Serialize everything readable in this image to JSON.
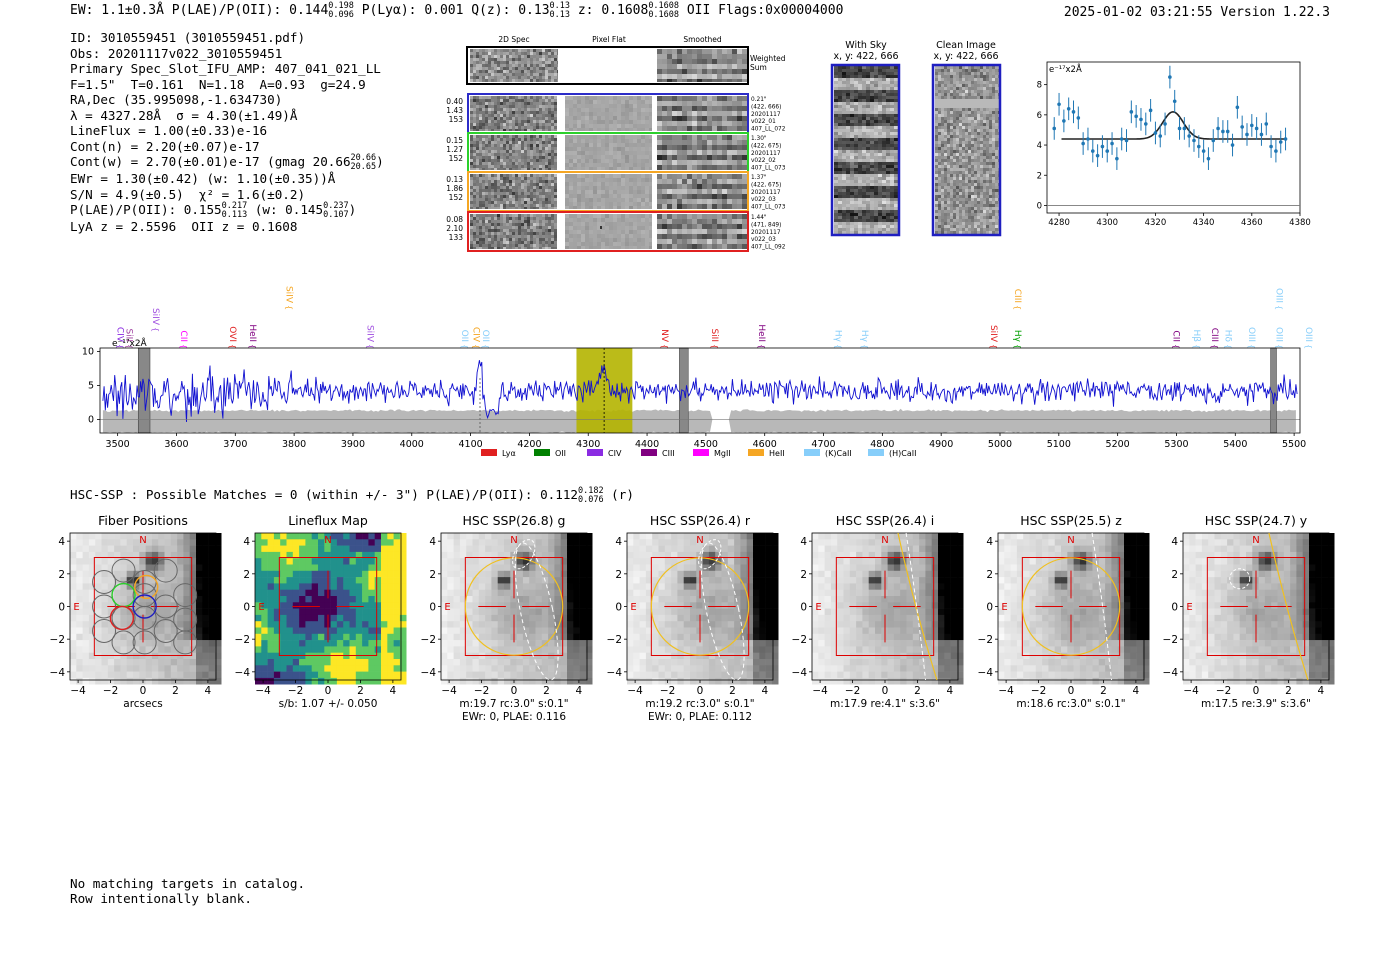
{
  "header": {
    "left": [
      {
        "t": "EW: 1.1±0.3Å   P(LAE)/P(OII): 0.144"
      },
      {
        "sup": "0.198",
        "sub": "0.096"
      },
      {
        "t": "  P(Lyα): 0.001   Q(z): 0.13"
      },
      {
        "sup": "0.13",
        "sub": "0.13"
      },
      {
        "t": "  z: 0.1608"
      },
      {
        "sup": "0.1608",
        "sub": "0.1608"
      },
      {
        "t": " OII   Flags:0x00004000"
      }
    ],
    "right": "2025-01-02 03:21:55  Version 1.22.3"
  },
  "info": {
    "lines": [
      "ID: 3010559451 (3010559451.pdf)",
      "Obs: 20201117v022_3010559451",
      "Primary Spec_Slot_IFU_AMP: 407_041_021_LL",
      "F=1.5\"  T=0.161  N=1.18  A=0.93  g=24.9",
      "RA,Dec (35.995098,-1.634730)",
      "λ = 4327.28Å  σ = 4.30(±1.49)Å",
      "LineFlux = 1.00(±0.33)e-16",
      "Cont(n) = 2.20(±0.07)e-17",
      "Cont(w) = 2.70(±0.01)e-17 (gmag 20.66",
      "EWr = 1.30(±0.42) (w: 1.10(±0.35))Å",
      "S/N = 4.9(±0.5)  χ² = 1.6(±0.2)",
      "P(LAE)/P(OII): 0.155",
      "LyA z = 2.5596  OII z = 0.1608"
    ],
    "cont_w_frac": {
      "sup": "20.66",
      "sub": "20.65",
      "tail": ")"
    },
    "plae_frac": {
      "sup": "0.217",
      "sub": "0.113",
      "mid": " (w: 0.145",
      "sup2": "0.237",
      "sub2": "0.107",
      "tail": ")"
    }
  },
  "cutouts": {
    "col_titles": [
      "2D Spec",
      "Pixel Flat",
      "Smoothed"
    ],
    "weighted_label": "Weighted Sum",
    "rows": [
      {
        "stats": [
          "0.40",
          "1.43",
          "153"
        ],
        "color": "#2c2cc8",
        "note": [
          "0.21\"",
          "(422, 666)",
          "20201117",
          "v022_01",
          "407_LL_072"
        ]
      },
      {
        "stats": [
          "0.15",
          "1.27",
          "152"
        ],
        "color": "#2bd02b",
        "note": [
          "1.30\"",
          "(422, 675)",
          "20201117",
          "v022_02",
          "407_LL_073"
        ]
      },
      {
        "stats": [
          "0.13",
          "1.86",
          "152"
        ],
        "color": "#f5a623",
        "note": [
          "1.37\"",
          "(422, 675)",
          "20201117",
          "v022_03",
          "407_LL_073"
        ]
      },
      {
        "stats": [
          "0.08",
          "2.10",
          "133"
        ],
        "color": "#e02020",
        "note": [
          "1.44\"",
          "(471, 849)",
          "20201117",
          "v022_03",
          "407_LL_092"
        ]
      }
    ]
  },
  "sky": {
    "with_sky_title": "With Sky",
    "with_sky_sub": "x, y: 422, 666",
    "clean_title": "Clean Image",
    "clean_sub": "x, y: 422, 666"
  },
  "line_fit": {
    "units": "e⁻¹⁷x2Å",
    "xticks": [
      "4280",
      "4300",
      "4320",
      "4340",
      "4360",
      "4380"
    ],
    "yticks": [
      "0",
      "2",
      "4",
      "6",
      "8"
    ],
    "xlim": [
      4275,
      4380
    ],
    "ylim": [
      -0.5,
      9.5
    ],
    "continuum": 4.4,
    "peak": 6.2,
    "center": 4327.3,
    "sigma": 4.3,
    "points_x": [
      4278,
      4280,
      4282,
      4284,
      4286,
      4288,
      4290,
      4292,
      4294,
      4296,
      4298,
      4300,
      4302,
      4304,
      4306,
      4308,
      4310,
      4312,
      4314,
      4316,
      4318,
      4320,
      4322,
      4324,
      4326,
      4328,
      4330,
      4332,
      4334,
      4336,
      4338,
      4340,
      4342,
      4344,
      4346,
      4348,
      4350,
      4352,
      4354,
      4356,
      4358,
      4360,
      4362,
      4364,
      4366,
      4368,
      4370,
      4372,
      4374
    ],
    "points_y": [
      5.1,
      6.7,
      5.6,
      6.4,
      6.2,
      5.8,
      4.1,
      4.4,
      3.6,
      3.3,
      3.9,
      3.6,
      4.1,
      3.1,
      4.4,
      4.3,
      6.2,
      5.9,
      5.7,
      5.4,
      6.3,
      4.8,
      4.6,
      5.4,
      8.5,
      6.9,
      5.1,
      5.1,
      4.6,
      4.3,
      3.9,
      3.6,
      3.1,
      4.3,
      5.1,
      4.9,
      4.9,
      4.0,
      6.5,
      5.2,
      4.7,
      5.3,
      5.1,
      4.7,
      5.4,
      3.9,
      3.6,
      4.2,
      4.4
    ],
    "errors": 0.75
  },
  "full_spec": {
    "units": "e⁻¹⁷x2Å",
    "xlim": [
      3470,
      5510
    ],
    "ylim": [
      -2,
      10.5
    ],
    "xticks": [
      "3500",
      "3600",
      "3700",
      "3800",
      "3900",
      "4000",
      "4100",
      "4200",
      "4300",
      "4400",
      "4500",
      "4600",
      "4700",
      "4800",
      "4900",
      "5000",
      "5100",
      "5200",
      "5300",
      "5400",
      "5500"
    ],
    "yticks": [
      "0",
      "5",
      "10"
    ],
    "highlight": [
      4280,
      4375
    ],
    "center_line": 4327,
    "dashed_line": 4116,
    "gray_bands": [
      [
        3535,
        3555
      ],
      [
        4455,
        4470
      ],
      [
        5460,
        5470
      ]
    ],
    "lines": [
      {
        "label": "CIV",
        "x": 3495,
        "color": "#8a2be2",
        "row": "low"
      },
      {
        "label": "SiII",
        "x": 3510,
        "color": "#a040a0",
        "row": "low"
      },
      {
        "label": "CII",
        "x": 3603,
        "color": "#ff00ff",
        "row": "low"
      },
      {
        "label": "SiIV",
        "x": 3555,
        "color": "#a050e0",
        "row": "mid"
      },
      {
        "label": "OVI",
        "x": 3686,
        "color": "#e02020",
        "row": "low"
      },
      {
        "label": "HeII",
        "x": 3720,
        "color": "#800080",
        "row": "low"
      },
      {
        "label": "SiIV",
        "x": 3782,
        "color": "#f5a623",
        "row": "high"
      },
      {
        "label": "SiIV",
        "x": 3920,
        "color": "#a050e0",
        "row": "low"
      },
      {
        "label": "OII",
        "x": 4080,
        "color": "#87cefa",
        "row": "low"
      },
      {
        "label": "CIV",
        "x": 4100,
        "color": "#f5a623",
        "row": "low"
      },
      {
        "label": "OII",
        "x": 4116,
        "color": "#87cefa",
        "row": "low"
      },
      {
        "label": "NV",
        "x": 4420,
        "color": "#e02020",
        "row": "low"
      },
      {
        "label": "SiII",
        "x": 4505,
        "color": "#e02020",
        "row": "low"
      },
      {
        "label": "HeII",
        "x": 4585,
        "color": "#800080",
        "row": "low"
      },
      {
        "label": "Hγ",
        "x": 4715,
        "color": "#87cefa",
        "row": "low"
      },
      {
        "label": "Hγ",
        "x": 4760,
        "color": "#87cefa",
        "row": "low"
      },
      {
        "label": "SiIV",
        "x": 4980,
        "color": "#e02020",
        "row": "low"
      },
      {
        "label": "Hγ",
        "x": 5020,
        "color": "#00a000",
        "row": "low"
      },
      {
        "label": "CIII",
        "x": 5020,
        "color": "#f5a623",
        "row": "high"
      },
      {
        "label": "CII",
        "x": 5290,
        "color": "#800080",
        "row": "low"
      },
      {
        "label": "Hβ",
        "x": 5325,
        "color": "#87cefa",
        "row": "low"
      },
      {
        "label": "CIII",
        "x": 5355,
        "color": "#800080",
        "row": "low"
      },
      {
        "label": "Hδ",
        "x": 5378,
        "color": "#87cefa",
        "row": "low"
      },
      {
        "label": "OIII",
        "x": 5418,
        "color": "#87cefa",
        "row": "low"
      },
      {
        "label": "OIII",
        "x": 5465,
        "color": "#87cefa",
        "row": "low"
      },
      {
        "label": "OIII",
        "x": 5465,
        "color": "#87cefa",
        "row": "high"
      },
      {
        "label": "OIII",
        "x": 5515,
        "color": "#87cefa",
        "row": "low"
      }
    ],
    "legend": [
      {
        "label": "Lyα",
        "color": "#e02020"
      },
      {
        "label": "OII",
        "color": "#008000"
      },
      {
        "label": "CIV",
        "color": "#8a2be2"
      },
      {
        "label": "CIII",
        "color": "#800080"
      },
      {
        "label": "MgII",
        "color": "#ff00ff"
      },
      {
        "label": "HeII",
        "color": "#f5a623"
      },
      {
        "label": "(K)CaII",
        "color": "#87cefa"
      },
      {
        "label": "(H)CaII",
        "color": "#87cefa"
      }
    ]
  },
  "hsc": {
    "title": "HSC-SSP : Possible Matches = 0 (within +/- 3\")  P(LAE)/P(OII): 0.112",
    "frac": {
      "sup": "0.182",
      "sub": "0.076"
    },
    "title_tail": " (r)",
    "ticks": [
      "−4",
      "−2",
      "0",
      "2",
      "4"
    ],
    "panels": [
      {
        "title": "Fiber Positions",
        "cap1": "arcsecs",
        "cap2": ""
      },
      {
        "title": "Lineflux Map",
        "cap1": "s/b: 1.07 +/- 0.050",
        "cap2": ""
      },
      {
        "title": "HSC SSP(26.8) g",
        "cap1": "m:19.7 rc:3.0\"  s:0.1\"",
        "cap2": "EWr: 0, PLAE: 0.116"
      },
      {
        "title": "HSC SSP(26.4) r",
        "cap1": "m:19.2 rc:3.0\"  s:0.1\"",
        "cap2": "EWr: 0, PLAE: 0.112"
      },
      {
        "title": "HSC SSP(26.4) i",
        "cap1": "m:17.9  re:4.1\"  s:3.6\"",
        "cap2": ""
      },
      {
        "title": "HSC SSP(25.5) z",
        "cap1": "m:18.6 rc:3.0\"  s:0.1\"",
        "cap2": ""
      },
      {
        "title": "HSC SSP(24.7) y",
        "cap1": "m:17.5  re:3.9\"  s:3.6\"",
        "cap2": ""
      }
    ],
    "north_label": "N",
    "east_label": "E"
  },
  "footer": {
    "line1": "No matching targets in catalog.",
    "line2": "Row intentionally blank."
  },
  "chart_data": [
    {
      "type": "scatter",
      "title": "",
      "ylabel": "e⁻¹⁷x2Å",
      "xlim": [
        4275,
        4380
      ],
      "ylim": [
        -0.5,
        9.5
      ],
      "series": [
        {
          "values": "see line_fit.points_x / points_y"
        }
      ]
    },
    {
      "type": "line",
      "title": "",
      "ylabel": "e⁻¹⁷x2Å",
      "xlim": [
        3470,
        5510
      ],
      "ylim": [
        -2,
        10.5
      ],
      "x": [
        3500,
        5500
      ]
    }
  ]
}
